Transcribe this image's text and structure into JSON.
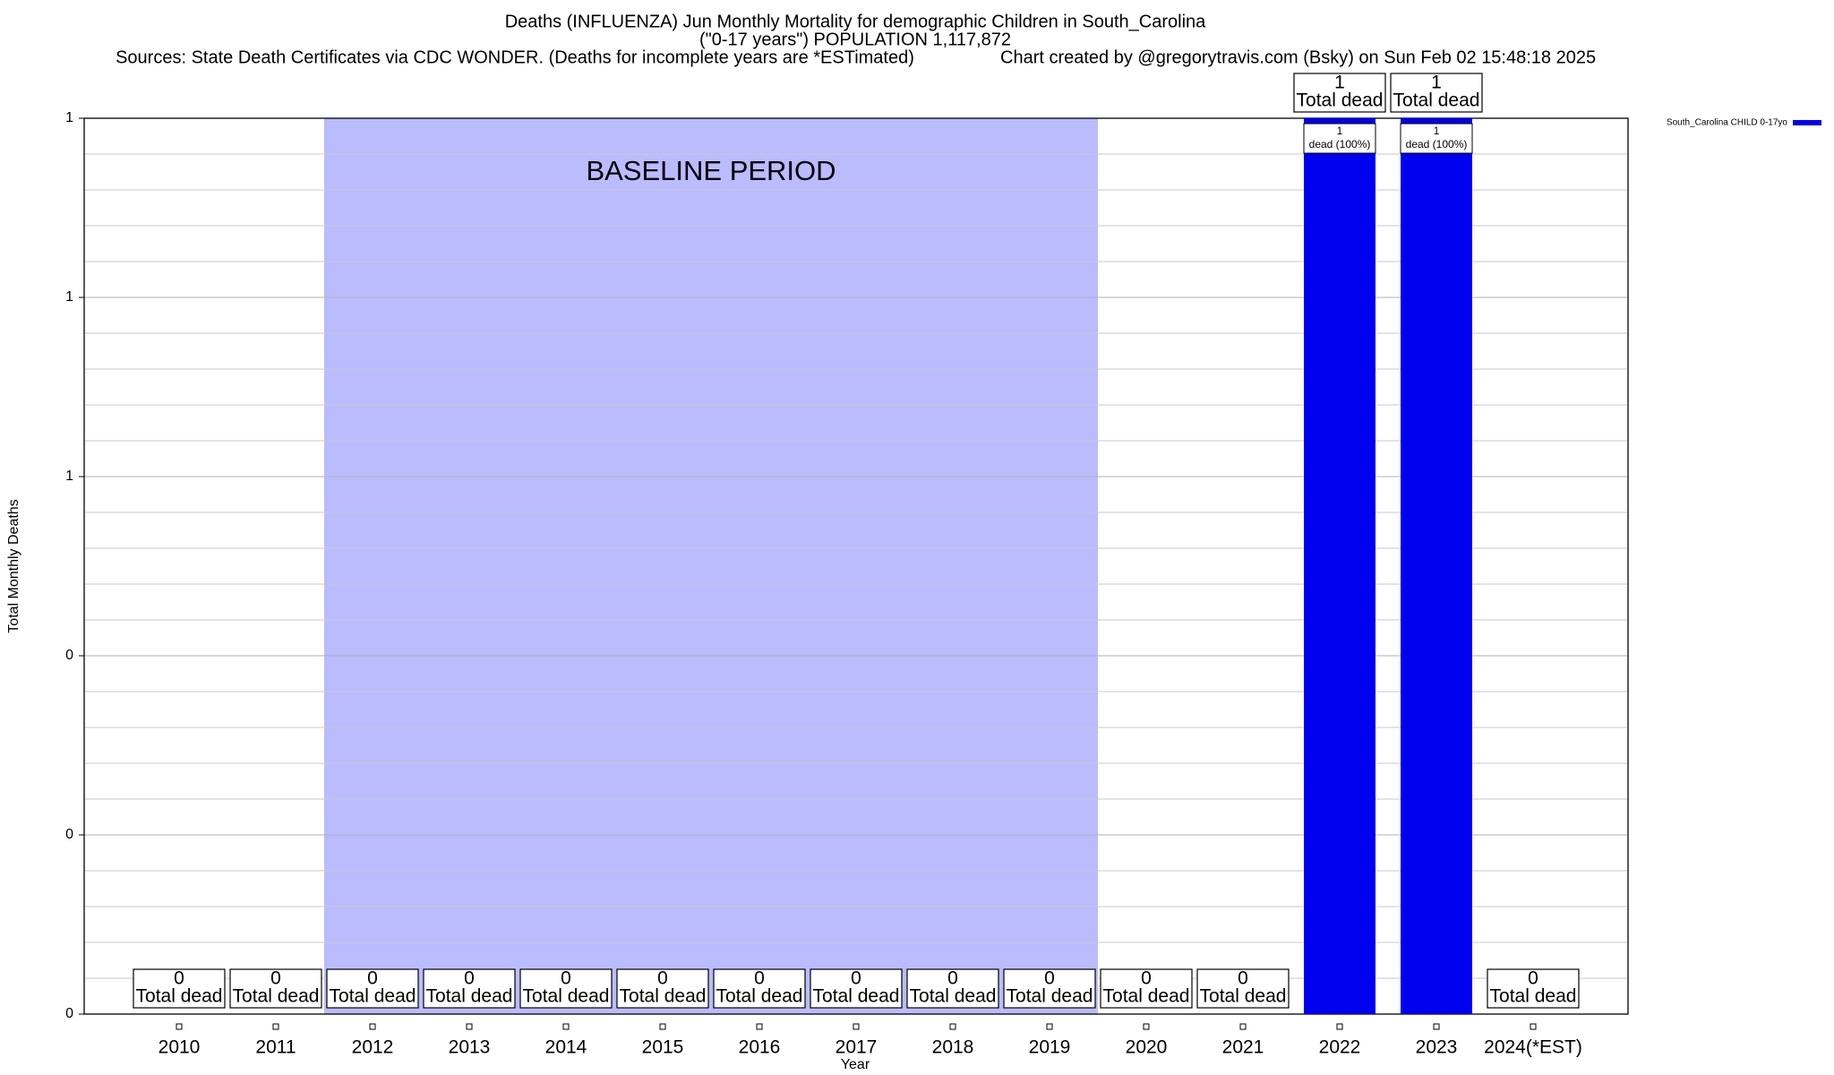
{
  "chart_data": {
    "type": "bar",
    "title": "Deaths (INFLUENZA) Jun Monthly Mortality for demographic Children in South_Carolina",
    "subtitle": "(\"0-17 years\") POPULATION 1,117,872",
    "source": "Sources: State Death Certificates via CDC WONDER. (Deaths for incomplete years are *ESTimated)",
    "credit": "Chart created by @gregorytravis.com (Bsky) on Sun Feb 02 15:48:18 2025",
    "xlabel": "Year",
    "ylabel": "Total Monthly Deaths",
    "categories": [
      "2010",
      "2011",
      "2012",
      "2013",
      "2014",
      "2015",
      "2016",
      "2017",
      "2018",
      "2019",
      "2020",
      "2021",
      "2022",
      "2023",
      "2024(*EST)"
    ],
    "series": [
      {
        "name": "South_Carolina CHILD 0-17yo",
        "color": "#0000ee",
        "values": [
          0,
          0,
          0,
          0,
          0,
          0,
          0,
          0,
          0,
          0,
          0,
          0,
          1,
          1,
          0
        ]
      }
    ],
    "total_label": "Total dead",
    "inner_label": "dead (100%)",
    "ylim": [
      0,
      1
    ],
    "yticks": [
      0,
      {
        "value": 0.2,
        "label": "0"
      },
      {
        "value": 0.4,
        "label": "0"
      },
      {
        "value": 0.6,
        "label": "1"
      },
      {
        "value": 0.8,
        "label": "1"
      },
      1
    ],
    "yminorticks": [
      0.04,
      0.08,
      0.12,
      0.16,
      0.24,
      0.28,
      0.32,
      0.36,
      0.44,
      0.48,
      0.52,
      0.56,
      0.64,
      0.68,
      0.72,
      0.76,
      0.84,
      0.88,
      0.92,
      0.96
    ],
    "grid": true,
    "legend": "top-right",
    "baseline": {
      "label": "BASELINE PERIOD",
      "start": "2012",
      "end": "2019",
      "color": "#bbbbff"
    }
  }
}
